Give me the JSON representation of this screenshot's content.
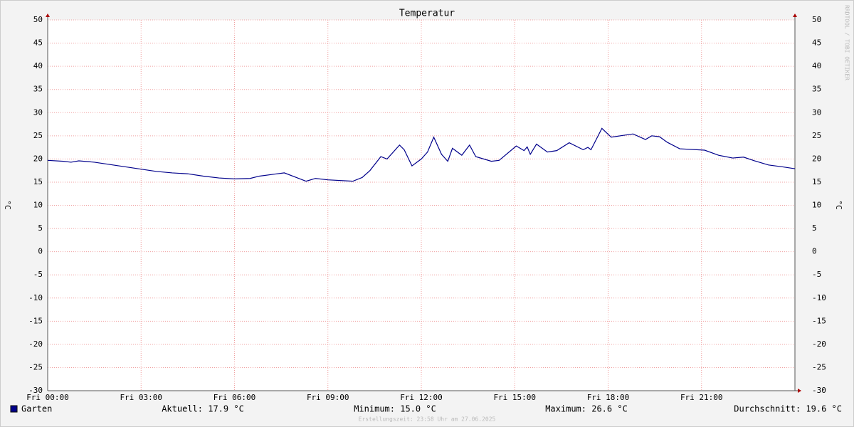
{
  "chart_data": {
    "type": "line",
    "title": "Temperatur",
    "y_label": "°C",
    "watermark": "RRDTOOL / TOBI OETIKER",
    "x": [
      0,
      0.5,
      0.75,
      1,
      1.5,
      2,
      2.5,
      3,
      3.5,
      4,
      4.5,
      5,
      5.5,
      6,
      6.5,
      6.8,
      7.6,
      8.3,
      8.6,
      9,
      9.8,
      10.1,
      10.35,
      10.7,
      10.9,
      11.3,
      11.45,
      11.7,
      12,
      12.2,
      12.4,
      12.65,
      12.85,
      13,
      13.3,
      13.55,
      13.75,
      14.25,
      14.5,
      15.05,
      15.3,
      15.4,
      15.5,
      15.7,
      16.05,
      16.35,
      16.75,
      17.2,
      17.35,
      17.45,
      17.8,
      18.1,
      18.8,
      19.2,
      19.4,
      19.65,
      19.9,
      20.3,
      21.1,
      21.55,
      22,
      22.35,
      22.7,
      23.15,
      23.6,
      24
    ],
    "series": [
      {
        "name": "Garten",
        "color": "#00008b",
        "values": [
          19.7,
          19.5,
          19.3,
          19.6,
          19.3,
          18.8,
          18.3,
          17.8,
          17.3,
          17.0,
          16.8,
          16.3,
          15.9,
          15.7,
          15.8,
          16.3,
          17.0,
          15.2,
          15.8,
          15.5,
          15.2,
          16.0,
          17.5,
          20.5,
          20.0,
          23.0,
          22.0,
          18.5,
          20.0,
          21.5,
          24.7,
          21.0,
          19.5,
          22.3,
          20.8,
          23.0,
          20.5,
          19.5,
          19.7,
          22.8,
          21.8,
          22.6,
          21.0,
          23.2,
          21.5,
          21.8,
          23.5,
          22.0,
          22.5,
          22.0,
          26.6,
          24.7,
          25.4,
          24.2,
          25.0,
          24.8,
          23.6,
          22.2,
          21.9,
          20.8,
          20.2,
          20.4,
          19.6,
          18.7,
          18.3,
          17.9
        ]
      }
    ],
    "xlim": [
      0,
      24
    ],
    "xticks": [
      {
        "value": 0,
        "label": "Fri 00:00"
      },
      {
        "value": 3,
        "label": "Fri 03:00"
      },
      {
        "value": 6,
        "label": "Fri 06:00"
      },
      {
        "value": 9,
        "label": "Fri 09:00"
      },
      {
        "value": 12,
        "label": "Fri 12:00"
      },
      {
        "value": 15,
        "label": "Fri 15:00"
      },
      {
        "value": 18,
        "label": "Fri 18:00"
      },
      {
        "value": 21,
        "label": "Fri 21:00"
      }
    ],
    "ylim": [
      -30,
      50
    ],
    "yticks": [
      -30,
      -25,
      -20,
      -15,
      -10,
      -5,
      0,
      5,
      10,
      15,
      20,
      25,
      30,
      35,
      40,
      45,
      50
    ],
    "grid": true,
    "stats": [
      "Aktuell: 17.9 °C",
      "Minimum: 15.0 °C",
      "Maximum: 26.6 °C",
      "Durchschnitt: 19.6 °C"
    ],
    "footer": "Erstellungszeit: 23:58 Uhr am 27.06.2025"
  }
}
